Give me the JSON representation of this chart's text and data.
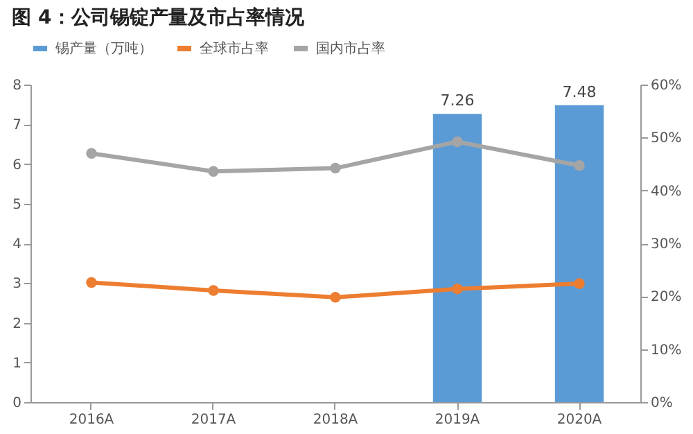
{
  "chart_data": {
    "type": "bar",
    "title": "图 4：公司锡锭产量及市占率情况",
    "categories": [
      "2016A",
      "2017A",
      "2018A",
      "2019A",
      "2020A"
    ],
    "series": [
      {
        "name": "锡产量（万吨）",
        "color": "#5b9bd5",
        "values": [
          null,
          null,
          null,
          7.26,
          7.48
        ],
        "value_labels": [
          null,
          null,
          null,
          "7.26",
          "7.48"
        ]
      },
      {
        "name": "全球市占率",
        "type": "line",
        "axis": "y2",
        "color": "#ed7d31",
        "values": [
          22.6,
          21.1,
          19.8,
          21.4,
          22.4
        ]
      },
      {
        "name": "国内市占率",
        "type": "line",
        "axis": "y2",
        "color": "#a5a5a5",
        "values": [
          47.0,
          43.6,
          44.2,
          49.2,
          44.7
        ]
      }
    ],
    "ylim": [
      0,
      8
    ],
    "yticks": [
      0,
      1,
      2,
      3,
      4,
      5,
      6,
      7,
      8
    ],
    "y2lim": [
      0,
      60
    ],
    "y2ticks": [
      {
        "value": 0,
        "label": "0%"
      },
      {
        "value": 10,
        "label": "10%"
      },
      {
        "value": 20,
        "label": "20%"
      },
      {
        "value": 30,
        "label": "30%"
      },
      {
        "value": 40,
        "label": "40%"
      },
      {
        "value": 50,
        "label": "50%"
      },
      {
        "value": 60,
        "label": "60%"
      }
    ],
    "legend": "top",
    "marker": "circle",
    "line_style": "solid",
    "grid": false
  }
}
